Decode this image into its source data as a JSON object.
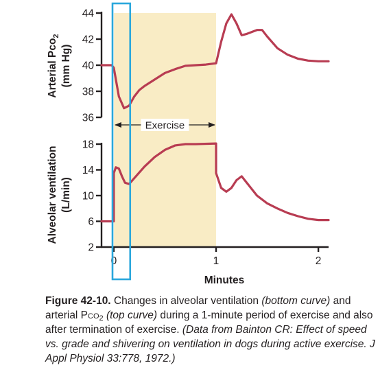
{
  "chart_data": [
    {
      "type": "line",
      "ylabel_line1": "Arterial Pco",
      "ylabel_sub": "2",
      "ylabel_line2": "(mm Hg)",
      "yticks": [
        36,
        38,
        40,
        42,
        44
      ],
      "ylim": [
        36,
        44
      ],
      "series": [
        {
          "x": [
            -0.12,
            -0.02,
            0.0,
            0.05,
            0.1,
            0.15,
            0.2,
            0.25,
            0.3,
            0.4,
            0.5,
            0.6,
            0.7,
            0.8,
            0.9,
            1.0,
            1.05,
            1.1,
            1.15,
            1.2,
            1.25,
            1.3,
            1.4,
            1.45,
            1.5,
            1.6,
            1.7,
            1.8,
            1.9,
            2.0,
            2.1
          ],
          "y": [
            40.0,
            40.0,
            39.8,
            37.6,
            36.7,
            36.9,
            37.6,
            38.1,
            38.4,
            38.9,
            39.4,
            39.7,
            39.95,
            40.0,
            40.05,
            40.15,
            41.8,
            43.2,
            43.9,
            43.2,
            42.3,
            42.4,
            42.7,
            42.7,
            42.2,
            41.3,
            40.8,
            40.5,
            40.35,
            40.3,
            40.3
          ]
        }
      ]
    },
    {
      "type": "line",
      "ylabel_line1": "Alveolar ventilation",
      "ylabel_line2": "(L/min)",
      "yticks": [
        2,
        6,
        10,
        14,
        18
      ],
      "ylim": [
        2,
        18
      ],
      "x_ticks": [
        0,
        1,
        2
      ],
      "xlim": [
        -0.12,
        2.1
      ],
      "xlabel": "Minutes",
      "series": [
        {
          "x": [
            -0.12,
            0.0,
            0.0,
            0.02,
            0.05,
            0.08,
            0.11,
            0.15,
            0.2,
            0.3,
            0.4,
            0.5,
            0.6,
            0.7,
            0.8,
            1.0,
            1.0,
            1.05,
            1.1,
            1.15,
            1.2,
            1.25,
            1.3,
            1.4,
            1.5,
            1.6,
            1.7,
            1.8,
            1.9,
            2.0,
            2.1
          ],
          "y": [
            6.0,
            6.0,
            13.5,
            14.4,
            14.2,
            13.0,
            12.0,
            11.8,
            12.7,
            14.5,
            16.0,
            17.1,
            17.8,
            18.0,
            18.0,
            18.1,
            13.5,
            11.2,
            10.6,
            11.2,
            12.4,
            13.0,
            12.0,
            10.0,
            8.8,
            8.0,
            7.3,
            6.8,
            6.4,
            6.2,
            6.2
          ]
        }
      ]
    }
  ],
  "exercise_label": "Exercise",
  "exercise_period": [
    0,
    1
  ],
  "highlight_box": [
    -0.12,
    0.16
  ],
  "colors": {
    "curve": "#b83c52",
    "shading": "#f9ecc5",
    "highlight_box": "#2aa7dc",
    "axis": "#231f20"
  },
  "caption": {
    "label": "Figure 42-10.",
    "t1": "Changes in alveolar ventilation ",
    "t2": "(bottom curve)",
    "t3": " and arterial P",
    "t3sc": "co",
    "t3sub": "2",
    "t4": " ",
    "t5": "(top curve)",
    "t6": " during a 1-minute period of exercise and also after termination of exercise. ",
    "t7": "(Data from Bainton CR: Effect of speed vs. grade and shivering on ventilation in dogs during active exercise. J Appl Physiol 33:778, 1972.)"
  }
}
